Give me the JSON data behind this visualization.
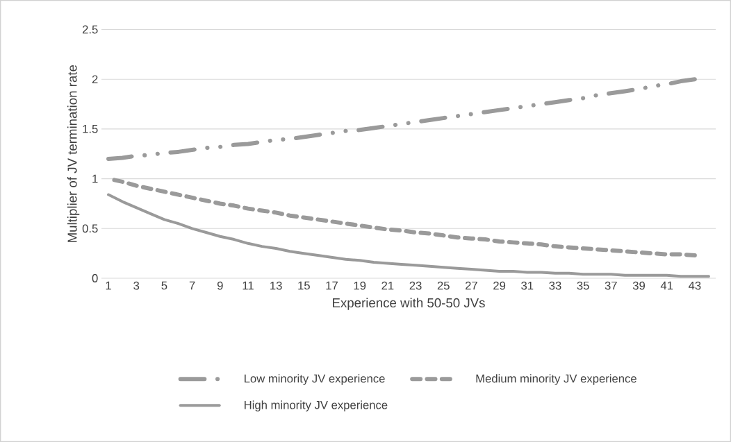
{
  "chart_data": {
    "type": "line",
    "xlabel": "Experience with 50-50 JVs",
    "ylabel": "Multiplier of JV termination rate",
    "categories": [
      "1",
      null,
      "3",
      null,
      "5",
      null,
      "7",
      null,
      "9",
      null,
      "11",
      null,
      "13",
      null,
      "15",
      null,
      "17",
      null,
      "19",
      null,
      "21",
      null,
      "23",
      null,
      "25",
      null,
      "27",
      null,
      "29",
      null,
      "31",
      null,
      "33",
      null,
      "35",
      null,
      "37",
      null,
      "39",
      null,
      "41",
      null,
      "43",
      null
    ],
    "series": [
      {
        "name": "Low minority JV experience",
        "color": "#9a9a9a",
        "line_style": "dashdotdotted",
        "values": [
          1.2,
          1.21,
          1.23,
          1.24,
          1.26,
          1.27,
          1.29,
          1.31,
          1.32,
          1.34,
          1.35,
          1.37,
          1.39,
          1.4,
          1.42,
          1.44,
          1.46,
          1.48,
          1.49,
          1.51,
          1.53,
          1.55,
          1.57,
          1.59,
          1.61,
          1.63,
          1.65,
          1.67,
          1.69,
          1.71,
          1.73,
          1.75,
          1.77,
          1.79,
          1.81,
          1.84,
          1.86,
          1.88,
          1.9,
          1.93,
          1.95,
          1.98,
          2.0,
          null
        ]
      },
      {
        "name": "Medium minority JV experience",
        "color": "#9a9a9a",
        "line_style": "dashed",
        "values": [
          1.0,
          0.97,
          0.93,
          0.9,
          0.87,
          0.84,
          0.81,
          0.78,
          0.75,
          0.73,
          0.7,
          0.68,
          0.66,
          0.63,
          0.61,
          0.59,
          0.57,
          0.55,
          0.53,
          0.51,
          0.49,
          0.48,
          0.46,
          0.45,
          0.43,
          0.41,
          0.4,
          0.39,
          0.37,
          0.36,
          0.35,
          0.34,
          0.32,
          0.31,
          0.3,
          0.29,
          0.28,
          0.27,
          0.26,
          0.25,
          0.24,
          0.24,
          0.23,
          null
        ]
      },
      {
        "name": "High minority JV experience",
        "color": "#9a9a9a",
        "line_style": "solid",
        "values": [
          0.84,
          0.77,
          0.71,
          0.65,
          0.59,
          0.55,
          0.5,
          0.46,
          0.42,
          0.39,
          0.35,
          0.32,
          0.3,
          0.27,
          0.25,
          0.23,
          0.21,
          0.19,
          0.18,
          0.16,
          0.15,
          0.14,
          0.13,
          0.12,
          0.11,
          0.1,
          0.09,
          0.08,
          0.07,
          0.07,
          0.06,
          0.06,
          0.05,
          0.05,
          0.04,
          0.04,
          0.04,
          0.03,
          0.03,
          0.03,
          0.03,
          0.02,
          0.02,
          0.02
        ]
      }
    ],
    "ylim": [
      0,
      2.5
    ],
    "yticks": [
      0,
      0.5,
      1,
      1.5,
      2,
      2.5
    ],
    "grid": "y",
    "legend": "bottom",
    "marker": "none"
  }
}
